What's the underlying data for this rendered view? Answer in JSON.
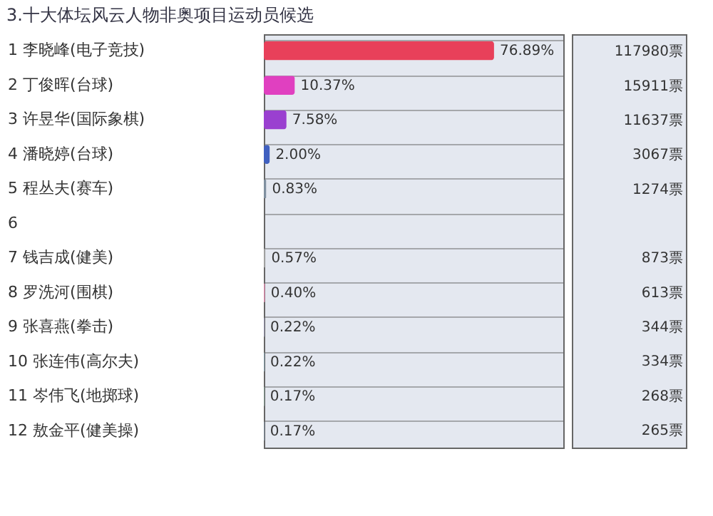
{
  "chart_data": {
    "type": "bar",
    "orientation": "horizontal",
    "title": "3.十大体坛风云人物非奥项目运动员候选",
    "categories": [
      "1 李晓峰(电子竞技)",
      "2 丁俊晖(台球)",
      "3 许昱华(国际象棋)",
      "4 潘晓婷(台球)",
      "5 程丛夫(赛车)",
      "6",
      "7 钱吉成(健美)",
      "8 罗洗河(围棋)",
      "9 张喜燕(拳击)",
      "10 张连伟(高尔夫)",
      "11 岑伟飞(地掷球)",
      "12 敖金平(健美操)"
    ],
    "values": [
      76.89,
      10.37,
      7.58,
      2.0,
      0.83,
      null,
      0.57,
      0.4,
      0.22,
      0.22,
      0.17,
      0.17
    ],
    "colors": [
      "#e8405a",
      "#e040c0",
      "#9a40d0",
      "#4060c0",
      "#8090a0",
      "#a0a0a0",
      "#a0a0a0",
      "#e090b0",
      "#a0a0c0",
      "#90b0c0",
      "#a0d0c0",
      "#a0c0e0"
    ],
    "value_labels": [
      "76.89%",
      "10.37%",
      "7.58%",
      "2.00%",
      "0.83%",
      null,
      "0.57%",
      "0.40%",
      "0.22%",
      "0.22%",
      "0.17%",
      "0.17%"
    ],
    "xlim": [
      0,
      100
    ],
    "annotations": [
      "117980票",
      "15911票",
      "11637票",
      "3067票",
      "1274票",
      "873票",
      "613票",
      "344票",
      "334票",
      "268票",
      "265票"
    ]
  }
}
